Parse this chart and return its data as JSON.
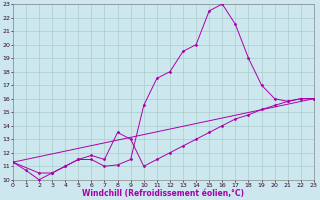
{
  "xlabel": "Windchill (Refroidissement éolien,°C)",
  "bg_color": "#cce8ee",
  "grid_color": "#aacccc",
  "line_color": "#aa00aa",
  "xmin": 0,
  "xmax": 23,
  "ymin": 10,
  "ymax": 23,
  "line1_x": [
    0,
    1,
    2,
    3,
    4,
    5,
    6,
    7,
    8,
    9,
    10,
    11,
    12,
    13,
    14,
    15,
    16,
    17,
    18,
    19,
    20,
    21,
    22,
    23
  ],
  "line1_y": [
    11.3,
    10.7,
    10.0,
    10.5,
    11.0,
    11.5,
    11.5,
    11.0,
    11.1,
    11.5,
    15.5,
    17.5,
    18.0,
    19.5,
    20.0,
    22.5,
    23.0,
    21.5,
    19.0,
    17.0,
    16.0,
    15.8,
    16.0,
    16.0
  ],
  "line2_x": [
    0,
    2,
    3,
    4,
    5,
    6,
    7,
    8,
    9,
    10,
    11,
    12,
    13,
    14,
    15,
    16,
    17,
    18,
    19,
    20,
    21,
    22,
    23
  ],
  "line2_y": [
    11.3,
    10.5,
    10.5,
    11.0,
    11.5,
    11.8,
    11.5,
    13.5,
    13.0,
    11.0,
    11.5,
    12.0,
    12.5,
    13.0,
    13.5,
    14.0,
    14.5,
    14.8,
    15.2,
    15.5,
    15.8,
    16.0,
    16.0
  ],
  "line3_x": [
    0,
    23
  ],
  "line3_y": [
    11.3,
    16.0
  ]
}
